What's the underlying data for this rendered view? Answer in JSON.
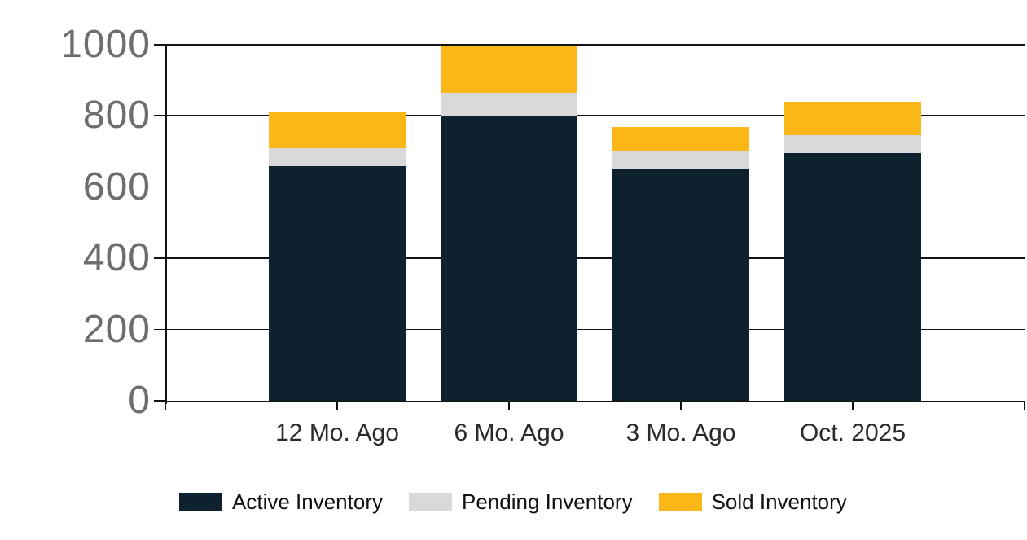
{
  "chart_data": {
    "type": "bar",
    "stacked": true,
    "title": "",
    "xlabel": "",
    "ylabel": "",
    "categories": [
      "12 Mo. Ago",
      "6 Mo. Ago",
      "3 Mo. Ago",
      "Oct. 2025"
    ],
    "series": [
      {
        "name": "Active Inventory",
        "color": "#0d212e",
        "values": [
          660,
          800,
          650,
          695
        ]
      },
      {
        "name": "Pending Inventory",
        "color": "#d9d9d9",
        "values": [
          50,
          65,
          50,
          50
        ]
      },
      {
        "name": "Sold Inventory",
        "color": "#fab717",
        "values": [
          100,
          130,
          70,
          95
        ]
      }
    ],
    "stack_totals": [
      810,
      995,
      770,
      840
    ],
    "ylim": [
      0,
      1000
    ],
    "yticks": [
      0,
      200,
      400,
      600,
      800,
      1000
    ],
    "grid": true,
    "legend_position": "bottom"
  },
  "style_colors": {
    "background": "#ffffff",
    "axis_line": "#121212",
    "y_tick_label": "#6d6e71",
    "x_tick_label": "#2b2b2b",
    "legend_text": "#111111"
  }
}
